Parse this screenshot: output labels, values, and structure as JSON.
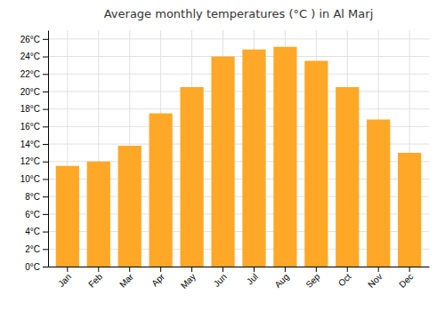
{
  "chart_data": {
    "type": "bar",
    "title": "Average monthly temperatures (°C ) in Al Marj",
    "categories": [
      "Jan",
      "Feb",
      "Mar",
      "Apr",
      "May",
      "Jun",
      "Jul",
      "Aug",
      "Sep",
      "Oct",
      "Nov",
      "Dec"
    ],
    "values": [
      11.5,
      12.0,
      13.8,
      17.5,
      20.5,
      24.0,
      24.8,
      25.1,
      23.5,
      20.5,
      16.8,
      13.0
    ],
    "color": "#FFA726",
    "ylim": [
      0,
      27
    ],
    "yticks": [
      {
        "value": 0,
        "label": "0°C"
      },
      {
        "value": 2,
        "label": "2°C"
      },
      {
        "value": 4,
        "label": "4°C"
      },
      {
        "value": 6,
        "label": "6°C"
      },
      {
        "value": 8,
        "label": "8°C"
      },
      {
        "value": 10,
        "label": "10°C"
      },
      {
        "value": 12,
        "label": "12°C"
      },
      {
        "value": 14,
        "label": "14°C"
      },
      {
        "value": 16,
        "label": "16°C"
      },
      {
        "value": 18,
        "label": "18°C"
      },
      {
        "value": 20,
        "label": "20°C"
      },
      {
        "value": 22,
        "label": "22°C"
      },
      {
        "value": 24,
        "label": "24°C"
      },
      {
        "value": 26,
        "label": "26°C"
      }
    ],
    "grid": true
  }
}
